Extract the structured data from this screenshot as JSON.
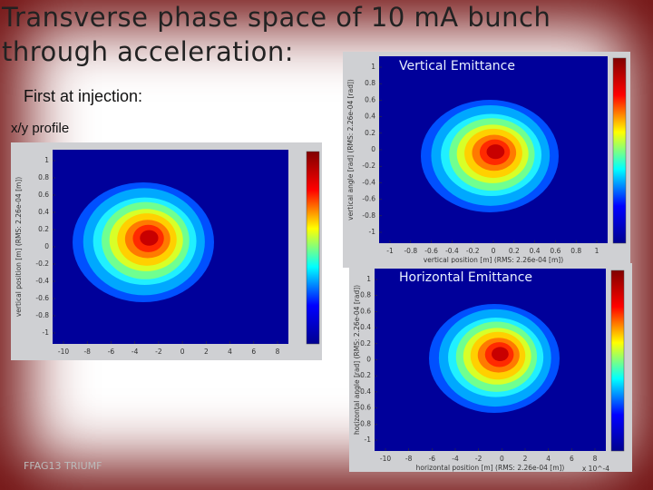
{
  "title_lines": [
    "Transverse phase space of 10 mA bunch",
    "through acceleration:"
  ],
  "subtitle": "First at injection:",
  "footer": "FFAG13 TRIUMF",
  "panels": [
    {
      "label": "x/y profile",
      "x_label": null,
      "y_label": "vertical position [m] (RMS: 2.26e-04 [m])",
      "xticks": [
        "-10",
        "-8",
        "-6",
        "-4",
        "-2",
        "0",
        "2",
        "4",
        "6",
        "8"
      ],
      "yticks": [
        "1",
        "0.8",
        "0.6",
        "0.4",
        "0.2",
        "0",
        "-0.2",
        "-0.4",
        "-0.6",
        "-0.8",
        "-1"
      ]
    },
    {
      "label": "Vertical Emittance",
      "x_label": "vertical position [m] (RMS: 2.26e-04 [m])",
      "y_label": "vertical angle [rad] (RMS: 2.26e-04 [rad])",
      "xticks": [
        "-1",
        "-0.8",
        "-0.6",
        "-0.4",
        "-0.2",
        "0",
        "0.2",
        "0.4",
        "0.6",
        "0.8",
        "1"
      ],
      "yticks": [
        "1",
        "0.8",
        "0.6",
        "0.4",
        "0.2",
        "0",
        "-0.2",
        "-0.4",
        "-0.6",
        "-0.8",
        "-1"
      ]
    },
    {
      "label": "Horizontal Emittance",
      "x_label": "horizontal position [m] (RMS: 2.26e-04 [m])",
      "y_label": "horizontal angle [rad] (RMS: 2.26e-04 [rad])",
      "xticks": [
        "-10",
        "-8",
        "-6",
        "-4",
        "-2",
        "0",
        "2",
        "4",
        "6",
        "8"
      ],
      "yticks": [
        "1",
        "0.8",
        "0.6",
        "0.4",
        "0.2",
        "0",
        "-0.2",
        "-0.4",
        "-0.6",
        "-0.8",
        "-1"
      ],
      "x_exponent": "x 10^-4"
    }
  ]
}
